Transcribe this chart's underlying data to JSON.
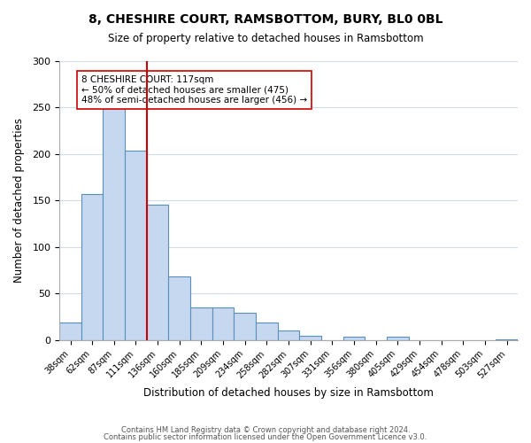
{
  "title": "8, CHESHIRE COURT, RAMSBOTTOM, BURY, BL0 0BL",
  "subtitle": "Size of property relative to detached houses in Ramsbottom",
  "xlabel": "Distribution of detached houses by size in Ramsbottom",
  "ylabel": "Number of detached properties",
  "bar_color": "#c5d8f0",
  "bar_edge_color": "#5a8fbb",
  "bin_labels": [
    "38sqm",
    "62sqm",
    "87sqm",
    "111sqm",
    "136sqm",
    "160sqm",
    "185sqm",
    "209sqm",
    "234sqm",
    "258sqm",
    "282sqm",
    "307sqm",
    "331sqm",
    "356sqm",
    "380sqm",
    "405sqm",
    "429sqm",
    "454sqm",
    "478sqm",
    "503sqm",
    "527sqm"
  ],
  "bar_heights": [
    19,
    157,
    251,
    204,
    146,
    69,
    35,
    35,
    29,
    19,
    10,
    5,
    0,
    4,
    0,
    4,
    0,
    0,
    0,
    0,
    1
  ],
  "vline_x": 3,
  "vline_color": "#cc0000",
  "annotation_title": "8 CHESHIRE COURT: 117sqm",
  "annotation_line1": "← 50% of detached houses are smaller (475)",
  "annotation_line2": "48% of semi-detached houses are larger (456) →",
  "annotation_box_color": "#ffffff",
  "annotation_box_edge_color": "#cc0000",
  "ylim": [
    0,
    300
  ],
  "yticks": [
    0,
    50,
    100,
    150,
    200,
    250,
    300
  ],
  "footer1": "Contains HM Land Registry data © Crown copyright and database right 2024.",
  "footer2": "Contains public sector information licensed under the Open Government Licence v3.0.",
  "background_color": "#ffffff",
  "grid_color": "#d0dce8"
}
